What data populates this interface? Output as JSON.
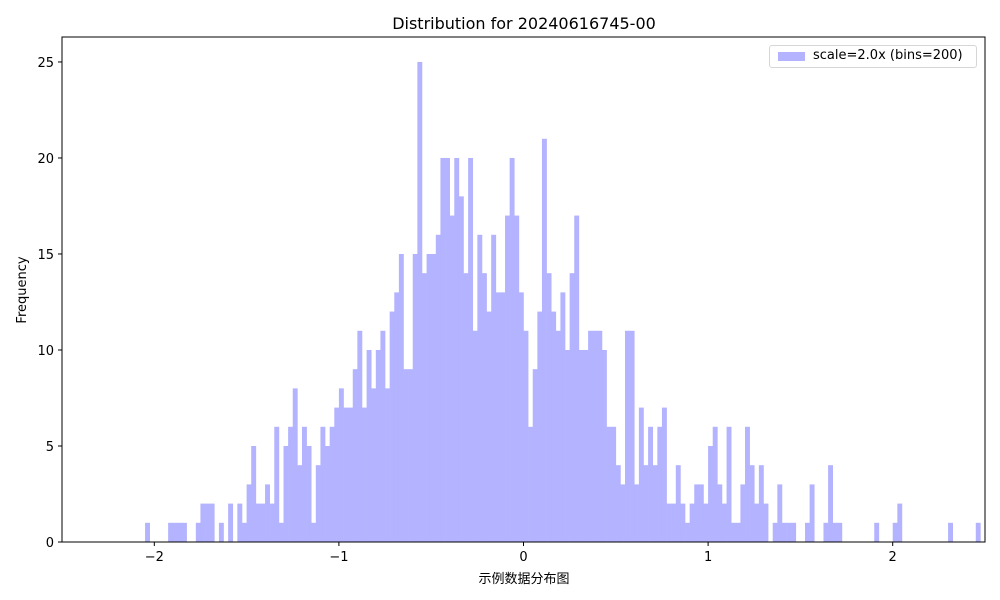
{
  "chart_data": {
    "type": "bar",
    "title": "Distribution for 20240616745-00",
    "xlabel": "示例数据分布图",
    "ylabel": "Frequency",
    "xlim": [
      -2.5,
      2.5
    ],
    "ylim": [
      0,
      26.3
    ],
    "x_ticks": [
      -2,
      -1,
      0,
      1,
      2
    ],
    "x_tick_labels": [
      "−2",
      "−1",
      "0",
      "1",
      "2"
    ],
    "y_ticks": [
      0,
      5,
      10,
      15,
      20,
      25
    ],
    "y_tick_labels": [
      "0",
      "5",
      "10",
      "15",
      "20",
      "25"
    ],
    "bar_color": "#b3b3ff",
    "legend": {
      "position": "upper right",
      "entries": [
        "scale=2.0x (bins=200)"
      ]
    },
    "grid": false,
    "series": [
      {
        "name": "scale=2.0x (bins=200)",
        "bins": [
          {
            "x0": -2.05,
            "x1": -2.025,
            "y": 1
          },
          {
            "x0": -1.925,
            "x1": -1.9,
            "y": 1
          },
          {
            "x0": -1.9,
            "x1": -1.875,
            "y": 1
          },
          {
            "x0": -1.875,
            "x1": -1.85,
            "y": 1
          },
          {
            "x0": -1.85,
            "x1": -1.825,
            "y": 1
          },
          {
            "x0": -1.775,
            "x1": -1.75,
            "y": 1
          },
          {
            "x0": -1.75,
            "x1": -1.725,
            "y": 2
          },
          {
            "x0": -1.725,
            "x1": -1.7,
            "y": 2
          },
          {
            "x0": -1.7,
            "x1": -1.675,
            "y": 2
          },
          {
            "x0": -1.65,
            "x1": -1.625,
            "y": 1
          },
          {
            "x0": -1.6,
            "x1": -1.575,
            "y": 2
          },
          {
            "x0": -1.55,
            "x1": -1.525,
            "y": 2
          },
          {
            "x0": -1.525,
            "x1": -1.5,
            "y": 1
          },
          {
            "x0": -1.5,
            "x1": -1.475,
            "y": 3
          },
          {
            "x0": -1.475,
            "x1": -1.45,
            "y": 5
          },
          {
            "x0": -1.45,
            "x1": -1.425,
            "y": 2
          },
          {
            "x0": -1.425,
            "x1": -1.4,
            "y": 2
          },
          {
            "x0": -1.4,
            "x1": -1.375,
            "y": 3
          },
          {
            "x0": -1.375,
            "x1": -1.35,
            "y": 2
          },
          {
            "x0": -1.35,
            "x1": -1.325,
            "y": 6
          },
          {
            "x0": -1.325,
            "x1": -1.3,
            "y": 1
          },
          {
            "x0": -1.3,
            "x1": -1.275,
            "y": 5
          },
          {
            "x0": -1.275,
            "x1": -1.25,
            "y": 6
          },
          {
            "x0": -1.25,
            "x1": -1.225,
            "y": 8
          },
          {
            "x0": -1.225,
            "x1": -1.2,
            "y": 4
          },
          {
            "x0": -1.2,
            "x1": -1.175,
            "y": 6
          },
          {
            "x0": -1.175,
            "x1": -1.15,
            "y": 5
          },
          {
            "x0": -1.15,
            "x1": -1.125,
            "y": 1
          },
          {
            "x0": -1.125,
            "x1": -1.1,
            "y": 4
          },
          {
            "x0": -1.1,
            "x1": -1.075,
            "y": 6
          },
          {
            "x0": -1.075,
            "x1": -1.05,
            "y": 5
          },
          {
            "x0": -1.05,
            "x1": -1.025,
            "y": 6
          },
          {
            "x0": -1.025,
            "x1": -1.0,
            "y": 7
          },
          {
            "x0": -1.0,
            "x1": -0.975,
            "y": 8
          },
          {
            "x0": -0.975,
            "x1": -0.95,
            "y": 7
          },
          {
            "x0": -0.95,
            "x1": -0.925,
            "y": 7
          },
          {
            "x0": -0.925,
            "x1": -0.9,
            "y": 9
          },
          {
            "x0": -0.9,
            "x1": -0.875,
            "y": 11
          },
          {
            "x0": -0.875,
            "x1": -0.85,
            "y": 7
          },
          {
            "x0": -0.85,
            "x1": -0.825,
            "y": 10
          },
          {
            "x0": -0.825,
            "x1": -0.8,
            "y": 8
          },
          {
            "x0": -0.8,
            "x1": -0.775,
            "y": 10
          },
          {
            "x0": -0.775,
            "x1": -0.75,
            "y": 11
          },
          {
            "x0": -0.75,
            "x1": -0.725,
            "y": 8
          },
          {
            "x0": -0.725,
            "x1": -0.7,
            "y": 12
          },
          {
            "x0": -0.7,
            "x1": -0.675,
            "y": 13
          },
          {
            "x0": -0.675,
            "x1": -0.65,
            "y": 15
          },
          {
            "x0": -0.65,
            "x1": -0.625,
            "y": 9
          },
          {
            "x0": -0.625,
            "x1": -0.6,
            "y": 9
          },
          {
            "x0": -0.6,
            "x1": -0.575,
            "y": 15
          },
          {
            "x0": -0.575,
            "x1": -0.55,
            "y": 25
          },
          {
            "x0": -0.55,
            "x1": -0.525,
            "y": 14
          },
          {
            "x0": -0.525,
            "x1": -0.5,
            "y": 15
          },
          {
            "x0": -0.5,
            "x1": -0.475,
            "y": 15
          },
          {
            "x0": -0.475,
            "x1": -0.45,
            "y": 16
          },
          {
            "x0": -0.45,
            "x1": -0.425,
            "y": 20
          },
          {
            "x0": -0.425,
            "x1": -0.4,
            "y": 20
          },
          {
            "x0": -0.4,
            "x1": -0.375,
            "y": 17
          },
          {
            "x0": -0.375,
            "x1": -0.35,
            "y": 20
          },
          {
            "x0": -0.35,
            "x1": -0.325,
            "y": 18
          },
          {
            "x0": -0.325,
            "x1": -0.3,
            "y": 14
          },
          {
            "x0": -0.3,
            "x1": -0.275,
            "y": 20
          },
          {
            "x0": -0.275,
            "x1": -0.25,
            "y": 11
          },
          {
            "x0": -0.25,
            "x1": -0.225,
            "y": 16
          },
          {
            "x0": -0.225,
            "x1": -0.2,
            "y": 14
          },
          {
            "x0": -0.2,
            "x1": -0.175,
            "y": 12
          },
          {
            "x0": -0.175,
            "x1": -0.15,
            "y": 16
          },
          {
            "x0": -0.15,
            "x1": -0.125,
            "y": 13
          },
          {
            "x0": -0.125,
            "x1": -0.1,
            "y": 13
          },
          {
            "x0": -0.1,
            "x1": -0.075,
            "y": 17
          },
          {
            "x0": -0.075,
            "x1": -0.05,
            "y": 20
          },
          {
            "x0": -0.05,
            "x1": -0.025,
            "y": 17
          },
          {
            "x0": -0.025,
            "x1": 0.0,
            "y": 13
          },
          {
            "x0": 0.0,
            "x1": 0.025,
            "y": 11
          },
          {
            "x0": 0.025,
            "x1": 0.05,
            "y": 6
          },
          {
            "x0": 0.05,
            "x1": 0.075,
            "y": 9
          },
          {
            "x0": 0.075,
            "x1": 0.1,
            "y": 12
          },
          {
            "x0": 0.1,
            "x1": 0.125,
            "y": 21
          },
          {
            "x0": 0.125,
            "x1": 0.15,
            "y": 14
          },
          {
            "x0": 0.15,
            "x1": 0.175,
            "y": 12
          },
          {
            "x0": 0.175,
            "x1": 0.2,
            "y": 11
          },
          {
            "x0": 0.2,
            "x1": 0.225,
            "y": 13
          },
          {
            "x0": 0.225,
            "x1": 0.25,
            "y": 10
          },
          {
            "x0": 0.25,
            "x1": 0.275,
            "y": 14
          },
          {
            "x0": 0.275,
            "x1": 0.3,
            "y": 17
          },
          {
            "x0": 0.3,
            "x1": 0.325,
            "y": 10
          },
          {
            "x0": 0.325,
            "x1": 0.35,
            "y": 10
          },
          {
            "x0": 0.35,
            "x1": 0.375,
            "y": 11
          },
          {
            "x0": 0.375,
            "x1": 0.4,
            "y": 11
          },
          {
            "x0": 0.4,
            "x1": 0.425,
            "y": 11
          },
          {
            "x0": 0.425,
            "x1": 0.45,
            "y": 10
          },
          {
            "x0": 0.45,
            "x1": 0.475,
            "y": 6
          },
          {
            "x0": 0.475,
            "x1": 0.5,
            "y": 6
          },
          {
            "x0": 0.5,
            "x1": 0.525,
            "y": 4
          },
          {
            "x0": 0.525,
            "x1": 0.55,
            "y": 3
          },
          {
            "x0": 0.55,
            "x1": 0.575,
            "y": 11
          },
          {
            "x0": 0.575,
            "x1": 0.6,
            "y": 11
          },
          {
            "x0": 0.6,
            "x1": 0.625,
            "y": 3
          },
          {
            "x0": 0.625,
            "x1": 0.65,
            "y": 7
          },
          {
            "x0": 0.65,
            "x1": 0.675,
            "y": 4
          },
          {
            "x0": 0.675,
            "x1": 0.7,
            "y": 6
          },
          {
            "x0": 0.7,
            "x1": 0.725,
            "y": 4
          },
          {
            "x0": 0.725,
            "x1": 0.75,
            "y": 6
          },
          {
            "x0": 0.75,
            "x1": 0.775,
            "y": 7
          },
          {
            "x0": 0.775,
            "x1": 0.8,
            "y": 2
          },
          {
            "x0": 0.8,
            "x1": 0.825,
            "y": 2
          },
          {
            "x0": 0.825,
            "x1": 0.85,
            "y": 4
          },
          {
            "x0": 0.85,
            "x1": 0.875,
            "y": 2
          },
          {
            "x0": 0.875,
            "x1": 0.9,
            "y": 1
          },
          {
            "x0": 0.9,
            "x1": 0.925,
            "y": 2
          },
          {
            "x0": 0.925,
            "x1": 0.95,
            "y": 3
          },
          {
            "x0": 0.95,
            "x1": 0.975,
            "y": 3
          },
          {
            "x0": 0.975,
            "x1": 1.0,
            "y": 2
          },
          {
            "x0": 1.0,
            "x1": 1.025,
            "y": 5
          },
          {
            "x0": 1.025,
            "x1": 1.05,
            "y": 6
          },
          {
            "x0": 1.05,
            "x1": 1.075,
            "y": 3
          },
          {
            "x0": 1.075,
            "x1": 1.1,
            "y": 2
          },
          {
            "x0": 1.1,
            "x1": 1.125,
            "y": 6
          },
          {
            "x0": 1.125,
            "x1": 1.15,
            "y": 1
          },
          {
            "x0": 1.15,
            "x1": 1.175,
            "y": 1
          },
          {
            "x0": 1.175,
            "x1": 1.2,
            "y": 3
          },
          {
            "x0": 1.2,
            "x1": 1.225,
            "y": 6
          },
          {
            "x0": 1.225,
            "x1": 1.25,
            "y": 4
          },
          {
            "x0": 1.25,
            "x1": 1.275,
            "y": 2
          },
          {
            "x0": 1.275,
            "x1": 1.3,
            "y": 4
          },
          {
            "x0": 1.3,
            "x1": 1.325,
            "y": 2
          },
          {
            "x0": 1.35,
            "x1": 1.375,
            "y": 1
          },
          {
            "x0": 1.375,
            "x1": 1.4,
            "y": 3
          },
          {
            "x0": 1.4,
            "x1": 1.425,
            "y": 1
          },
          {
            "x0": 1.425,
            "x1": 1.45,
            "y": 1
          },
          {
            "x0": 1.45,
            "x1": 1.475,
            "y": 1
          },
          {
            "x0": 1.525,
            "x1": 1.55,
            "y": 1
          },
          {
            "x0": 1.55,
            "x1": 1.575,
            "y": 3
          },
          {
            "x0": 1.625,
            "x1": 1.65,
            "y": 1
          },
          {
            "x0": 1.65,
            "x1": 1.675,
            "y": 4
          },
          {
            "x0": 1.675,
            "x1": 1.7,
            "y": 1
          },
          {
            "x0": 1.7,
            "x1": 1.725,
            "y": 1
          },
          {
            "x0": 1.9,
            "x1": 1.925,
            "y": 1
          },
          {
            "x0": 2.0,
            "x1": 2.025,
            "y": 1
          },
          {
            "x0": 2.025,
            "x1": 2.05,
            "y": 2
          },
          {
            "x0": 2.3,
            "x1": 2.325,
            "y": 1
          },
          {
            "x0": 2.45,
            "x1": 2.475,
            "y": 1
          }
        ]
      }
    ]
  }
}
